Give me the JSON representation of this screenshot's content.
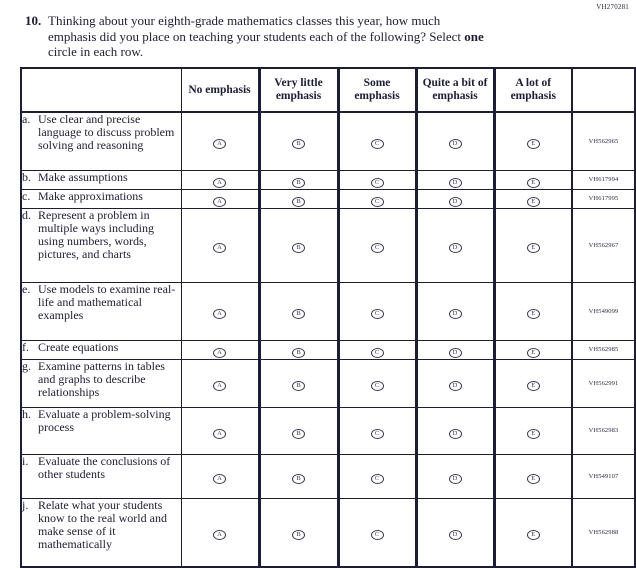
{
  "page": {
    "corner_code": "VH270281"
  },
  "question": {
    "number": "10.",
    "line1": "Thinking about your eighth-grade mathematics classes this year, how much",
    "line2_before": "emphasis did you place on teaching your students each of the following? Select ",
    "line2_bold": "one",
    "line3": "circle in each row."
  },
  "table": {
    "headers": [
      "No emphasis",
      "Very little emphasis",
      "Some emphasis",
      "Quite a bit of emphasis",
      "A lot of emphasis"
    ],
    "options": [
      "A",
      "B",
      "C",
      "D",
      "E"
    ],
    "rows": [
      {
        "letter": "a.",
        "label": "Use clear and precise language to discuss problem solving and reasoning",
        "code": "VH562965"
      },
      {
        "letter": "b.",
        "label": "Make assumptions",
        "code": "VH617994"
      },
      {
        "letter": "c.",
        "label": "Make approximations",
        "code": "VH617995"
      },
      {
        "letter": "d.",
        "label": "Represent a problem in multiple ways including using numbers, words, pictures, and charts",
        "code": "VH562967"
      },
      {
        "letter": "e.",
        "label": "Use models to examine real-life and mathematical examples",
        "code": "VH549099"
      },
      {
        "letter": "f.",
        "label": "Create equations",
        "code": "VH562985"
      },
      {
        "letter": "g.",
        "label": "Examine patterns in tables and graphs to describe relationships",
        "code": "VH562991"
      },
      {
        "letter": "h.",
        "label": "Evaluate a problem-solving process",
        "code": "VH562983"
      },
      {
        "letter": "i.",
        "label": "Evaluate the conclusions of other students",
        "code": "VH549107"
      },
      {
        "letter": "j.",
        "label": "Relate what your students know to the real world and make sense of it mathematically",
        "code": "VH562988"
      }
    ]
  }
}
